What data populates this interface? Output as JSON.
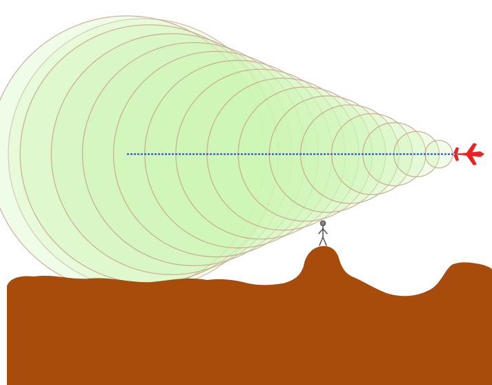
{
  "scene": {
    "elements": [
      "shock-waves",
      "flight-path",
      "airplane",
      "observer",
      "ground"
    ],
    "wave_count": 15
  },
  "colors": {
    "background": "#ffffff",
    "wave_fill": "#cef5b4",
    "wave_stroke": "#c8a48c",
    "flight_path": "#3355cc",
    "airplane": "#ee2020",
    "ground": "#a84c0c",
    "observer": "#555555"
  },
  "icons": [
    "airplane-icon",
    "person-icon"
  ]
}
